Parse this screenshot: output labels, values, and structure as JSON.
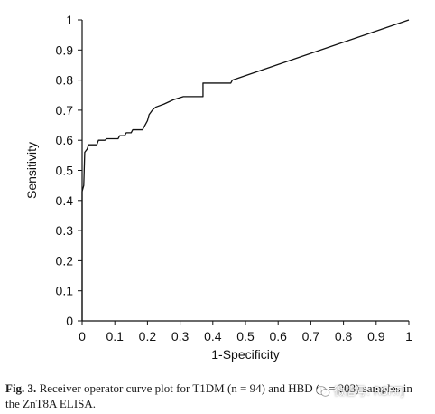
{
  "chart_data": {
    "type": "line",
    "title": "",
    "xlabel": "1-Specificity",
    "ylabel": "Sensitivity",
    "xlim": [
      0,
      1
    ],
    "ylim": [
      0,
      1
    ],
    "x_ticks": [
      "0",
      "0.1",
      "0.2",
      "0.3",
      "0.4",
      "0.5",
      "0.6",
      "0.7",
      "0.8",
      "0.9",
      "1"
    ],
    "y_ticks": [
      "0",
      "0.1",
      "0.2",
      "0.3",
      "0.4",
      "0.5",
      "0.6",
      "0.7",
      "0.8",
      "0.9",
      "1"
    ],
    "grid": false,
    "series": [
      {
        "color": "#111111",
        "points": [
          [
            0,
            0
          ],
          [
            0,
            0.43
          ],
          [
            0.005,
            0.45
          ],
          [
            0.008,
            0.56
          ],
          [
            0.015,
            0.57
          ],
          [
            0.02,
            0.585
          ],
          [
            0.045,
            0.585
          ],
          [
            0.05,
            0.6
          ],
          [
            0.07,
            0.6
          ],
          [
            0.075,
            0.605
          ],
          [
            0.11,
            0.605
          ],
          [
            0.115,
            0.615
          ],
          [
            0.13,
            0.615
          ],
          [
            0.135,
            0.625
          ],
          [
            0.15,
            0.625
          ],
          [
            0.155,
            0.635
          ],
          [
            0.185,
            0.635
          ],
          [
            0.19,
            0.645
          ],
          [
            0.195,
            0.655
          ],
          [
            0.2,
            0.665
          ],
          [
            0.205,
            0.685
          ],
          [
            0.215,
            0.7
          ],
          [
            0.225,
            0.71
          ],
          [
            0.25,
            0.72
          ],
          [
            0.28,
            0.735
          ],
          [
            0.31,
            0.745
          ],
          [
            0.37,
            0.745
          ],
          [
            0.37,
            0.79
          ],
          [
            0.455,
            0.79
          ],
          [
            0.46,
            0.8
          ],
          [
            1.0,
            1.0
          ]
        ]
      }
    ]
  },
  "caption": {
    "label": "Fig. 3.",
    "text": "Receiver operator curve plot for T1DM (n = 94) and HBD (n = 203) samples in the ZnT8A ELISA."
  },
  "watermark": {
    "text": "微信号: RSRTJ"
  }
}
